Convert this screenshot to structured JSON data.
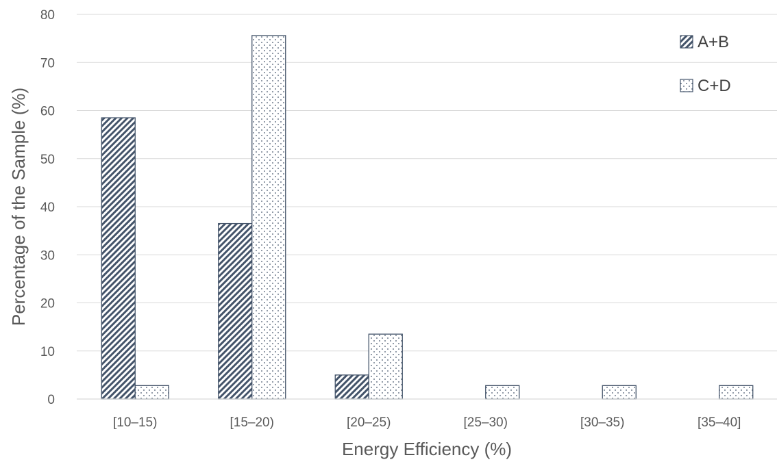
{
  "chart_data": {
    "type": "bar",
    "categories": [
      "[10–15)",
      "[15–20)",
      "[20–25)",
      "[25–30)",
      "[30–35)",
      "[35–40]"
    ],
    "series": [
      {
        "name": "A+B",
        "values": [
          58.5,
          36.5,
          5.0,
          0,
          0,
          0
        ],
        "pattern": "diagonal-hatch"
      },
      {
        "name": "C+D",
        "values": [
          2.8,
          75.6,
          13.5,
          2.8,
          2.8,
          2.8
        ],
        "pattern": "dots"
      }
    ],
    "title": "",
    "xlabel": "Energy Efficiency (%)",
    "ylabel": "Percentage of the Sample (%)",
    "ylim": [
      0,
      80
    ],
    "yticks": [
      0,
      10,
      20,
      30,
      40,
      50,
      60,
      70,
      80
    ],
    "grid": true,
    "legend_position": "top-right",
    "colors": {
      "bar_stroke": "#44546a",
      "grid": "#d9d9d9",
      "text": "#595959"
    }
  }
}
